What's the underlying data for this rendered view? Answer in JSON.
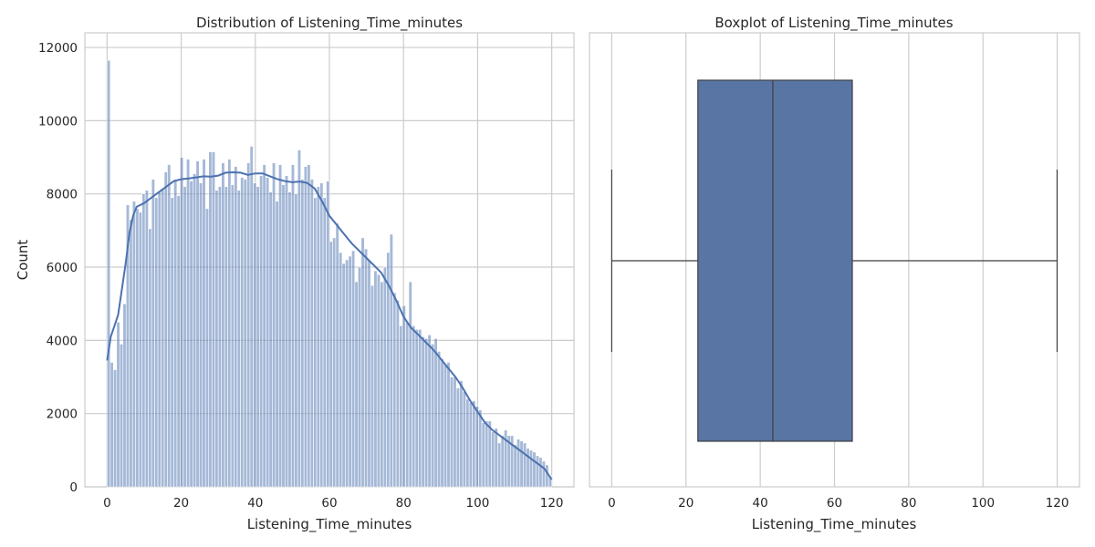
{
  "chart_data": [
    {
      "type": "bar",
      "subtype": "histogram",
      "title": "Distribution of Listening_Time_minutes",
      "xlabel": "Listening_Time_minutes",
      "ylabel": "Count",
      "xlim": [
        -6,
        126
      ],
      "ylim": [
        0,
        12400
      ],
      "xticks": [
        0,
        20,
        40,
        60,
        80,
        100,
        120
      ],
      "yticks": [
        0,
        2000,
        4000,
        6000,
        8000,
        10000,
        12000
      ],
      "grid": true,
      "bin_width": 1,
      "bin_start": 0,
      "counts": [
        11650,
        3400,
        3200,
        4500,
        3900,
        5000,
        7700,
        7300,
        7800,
        7600,
        7500,
        8000,
        8100,
        7050,
        8400,
        7900,
        8050,
        8150,
        8600,
        8800,
        7900,
        8400,
        7950,
        9000,
        8200,
        8950,
        8350,
        8550,
        8900,
        8300,
        8950,
        7600,
        9150,
        9150,
        8100,
        8200,
        8850,
        8200,
        8950,
        8250,
        8750,
        8100,
        8450,
        8400,
        8850,
        9300,
        8300,
        8200,
        8500,
        8800,
        8450,
        8050,
        8850,
        7800,
        8800,
        8250,
        8500,
        8050,
        8800,
        8000,
        9200,
        8400,
        8750,
        8800,
        8400,
        7900,
        8200,
        8300,
        7900,
        8350,
        6700,
        6800,
        7200,
        6400,
        6100,
        6200,
        6300,
        6450,
        5600,
        6000,
        6800,
        6500,
        6200,
        5500,
        5900,
        5800,
        5600,
        6000,
        6400,
        6900,
        5300,
        5100,
        4400,
        4950,
        4500,
        5600,
        4400,
        4300,
        4300,
        4100,
        4050,
        4150,
        3900,
        4050,
        3700,
        3500,
        3350,
        3400,
        3000,
        3000,
        2700,
        2900,
        2600,
        2400,
        2300,
        2350,
        2200,
        2100,
        1750,
        1800,
        1800,
        1500,
        1600,
        1200,
        1400,
        1550,
        1400,
        1400,
        1150,
        1300,
        1250,
        1200,
        1050,
        1000,
        950,
        850,
        800,
        700,
        600,
        300
      ],
      "kde": [
        [
          0,
          3450
        ],
        [
          1,
          4100
        ],
        [
          2,
          4400
        ],
        [
          3,
          4700
        ],
        [
          4,
          5400
        ],
        [
          5,
          6100
        ],
        [
          6,
          6900
        ],
        [
          7,
          7400
        ],
        [
          8,
          7650
        ],
        [
          10,
          7750
        ],
        [
          12,
          7900
        ],
        [
          14,
          8050
        ],
        [
          16,
          8200
        ],
        [
          18,
          8350
        ],
        [
          20,
          8400
        ],
        [
          22,
          8420
        ],
        [
          24,
          8450
        ],
        [
          26,
          8480
        ],
        [
          28,
          8470
        ],
        [
          30,
          8500
        ],
        [
          32,
          8580
        ],
        [
          34,
          8590
        ],
        [
          36,
          8580
        ],
        [
          38,
          8520
        ],
        [
          40,
          8560
        ],
        [
          42,
          8560
        ],
        [
          44,
          8480
        ],
        [
          46,
          8400
        ],
        [
          48,
          8350
        ],
        [
          50,
          8320
        ],
        [
          52,
          8340
        ],
        [
          54,
          8300
        ],
        [
          56,
          8150
        ],
        [
          58,
          7800
        ],
        [
          60,
          7400
        ],
        [
          62,
          7150
        ],
        [
          64,
          6900
        ],
        [
          66,
          6650
        ],
        [
          68,
          6450
        ],
        [
          70,
          6250
        ],
        [
          72,
          6050
        ],
        [
          74,
          5850
        ],
        [
          76,
          5500
        ],
        [
          78,
          5100
        ],
        [
          80,
          4650
        ],
        [
          82,
          4350
        ],
        [
          84,
          4150
        ],
        [
          86,
          3950
        ],
        [
          88,
          3750
        ],
        [
          90,
          3500
        ],
        [
          92,
          3250
        ],
        [
          94,
          3000
        ],
        [
          96,
          2700
        ],
        [
          98,
          2350
        ],
        [
          100,
          2050
        ],
        [
          102,
          1750
        ],
        [
          104,
          1550
        ],
        [
          106,
          1400
        ],
        [
          108,
          1250
        ],
        [
          110,
          1100
        ],
        [
          112,
          950
        ],
        [
          114,
          800
        ],
        [
          116,
          650
        ],
        [
          118,
          500
        ],
        [
          119,
          350
        ],
        [
          120,
          200
        ]
      ]
    },
    {
      "type": "box",
      "title": "Boxplot of Listening_Time_minutes",
      "xlabel": "Listening_Time_minutes",
      "xlim": [
        -6,
        126
      ],
      "xticks": [
        0,
        20,
        40,
        60,
        80,
        100,
        120
      ],
      "grid": true,
      "min": 0,
      "q1": 23.2,
      "median": 43.4,
      "q3": 64.8,
      "max": 119.97,
      "box_color": "#5875a4"
    }
  ]
}
